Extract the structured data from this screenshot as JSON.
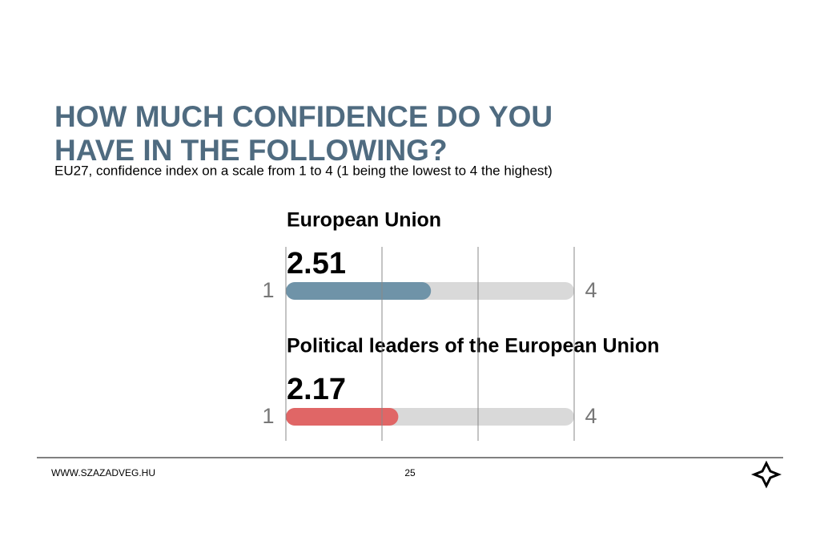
{
  "chart_data": {
    "type": "gauge-bar",
    "title": [
      "HOW MUCH CONFIDENCE DO YOU",
      "HAVE IN THE FOLLOWING?"
    ],
    "subtitle": "EU27, confidence index on a scale from 1 to 4 (1 being the lowest to 4 the highest)",
    "categories": [
      "European Union",
      "Political leaders of the European Union"
    ],
    "values": [
      2.51,
      2.17
    ],
    "colors": [
      "#6f93a8",
      "#e06666"
    ],
    "track_color": "#d9d9d9",
    "xlim": [
      1,
      4
    ],
    "xticks": [
      1,
      2,
      3,
      4
    ],
    "grid": true
  },
  "footer": {
    "website": "WWW.SZAZADVEG.HU",
    "page": "25"
  }
}
